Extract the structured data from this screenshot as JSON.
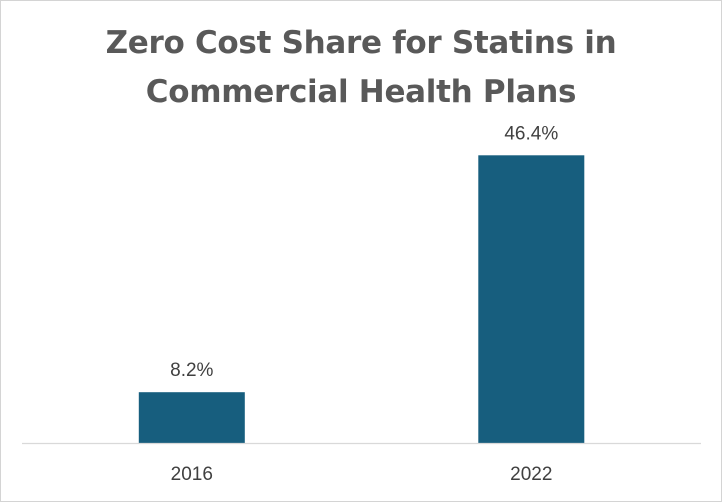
{
  "chart_data": {
    "type": "bar",
    "title_lines": [
      "Zero Cost Share for Statins in",
      "Commercial Health Plans"
    ],
    "categories": [
      "2016",
      "2022"
    ],
    "values": [
      8.2,
      46.4
    ],
    "data_labels": [
      "8.2%",
      "46.4%"
    ],
    "xlabel": "",
    "ylabel": "",
    "ylim": [
      0,
      50
    ],
    "grid": false,
    "legend": "none",
    "bar_color": "#175e7e",
    "axis_color": "#d9d9d9"
  }
}
